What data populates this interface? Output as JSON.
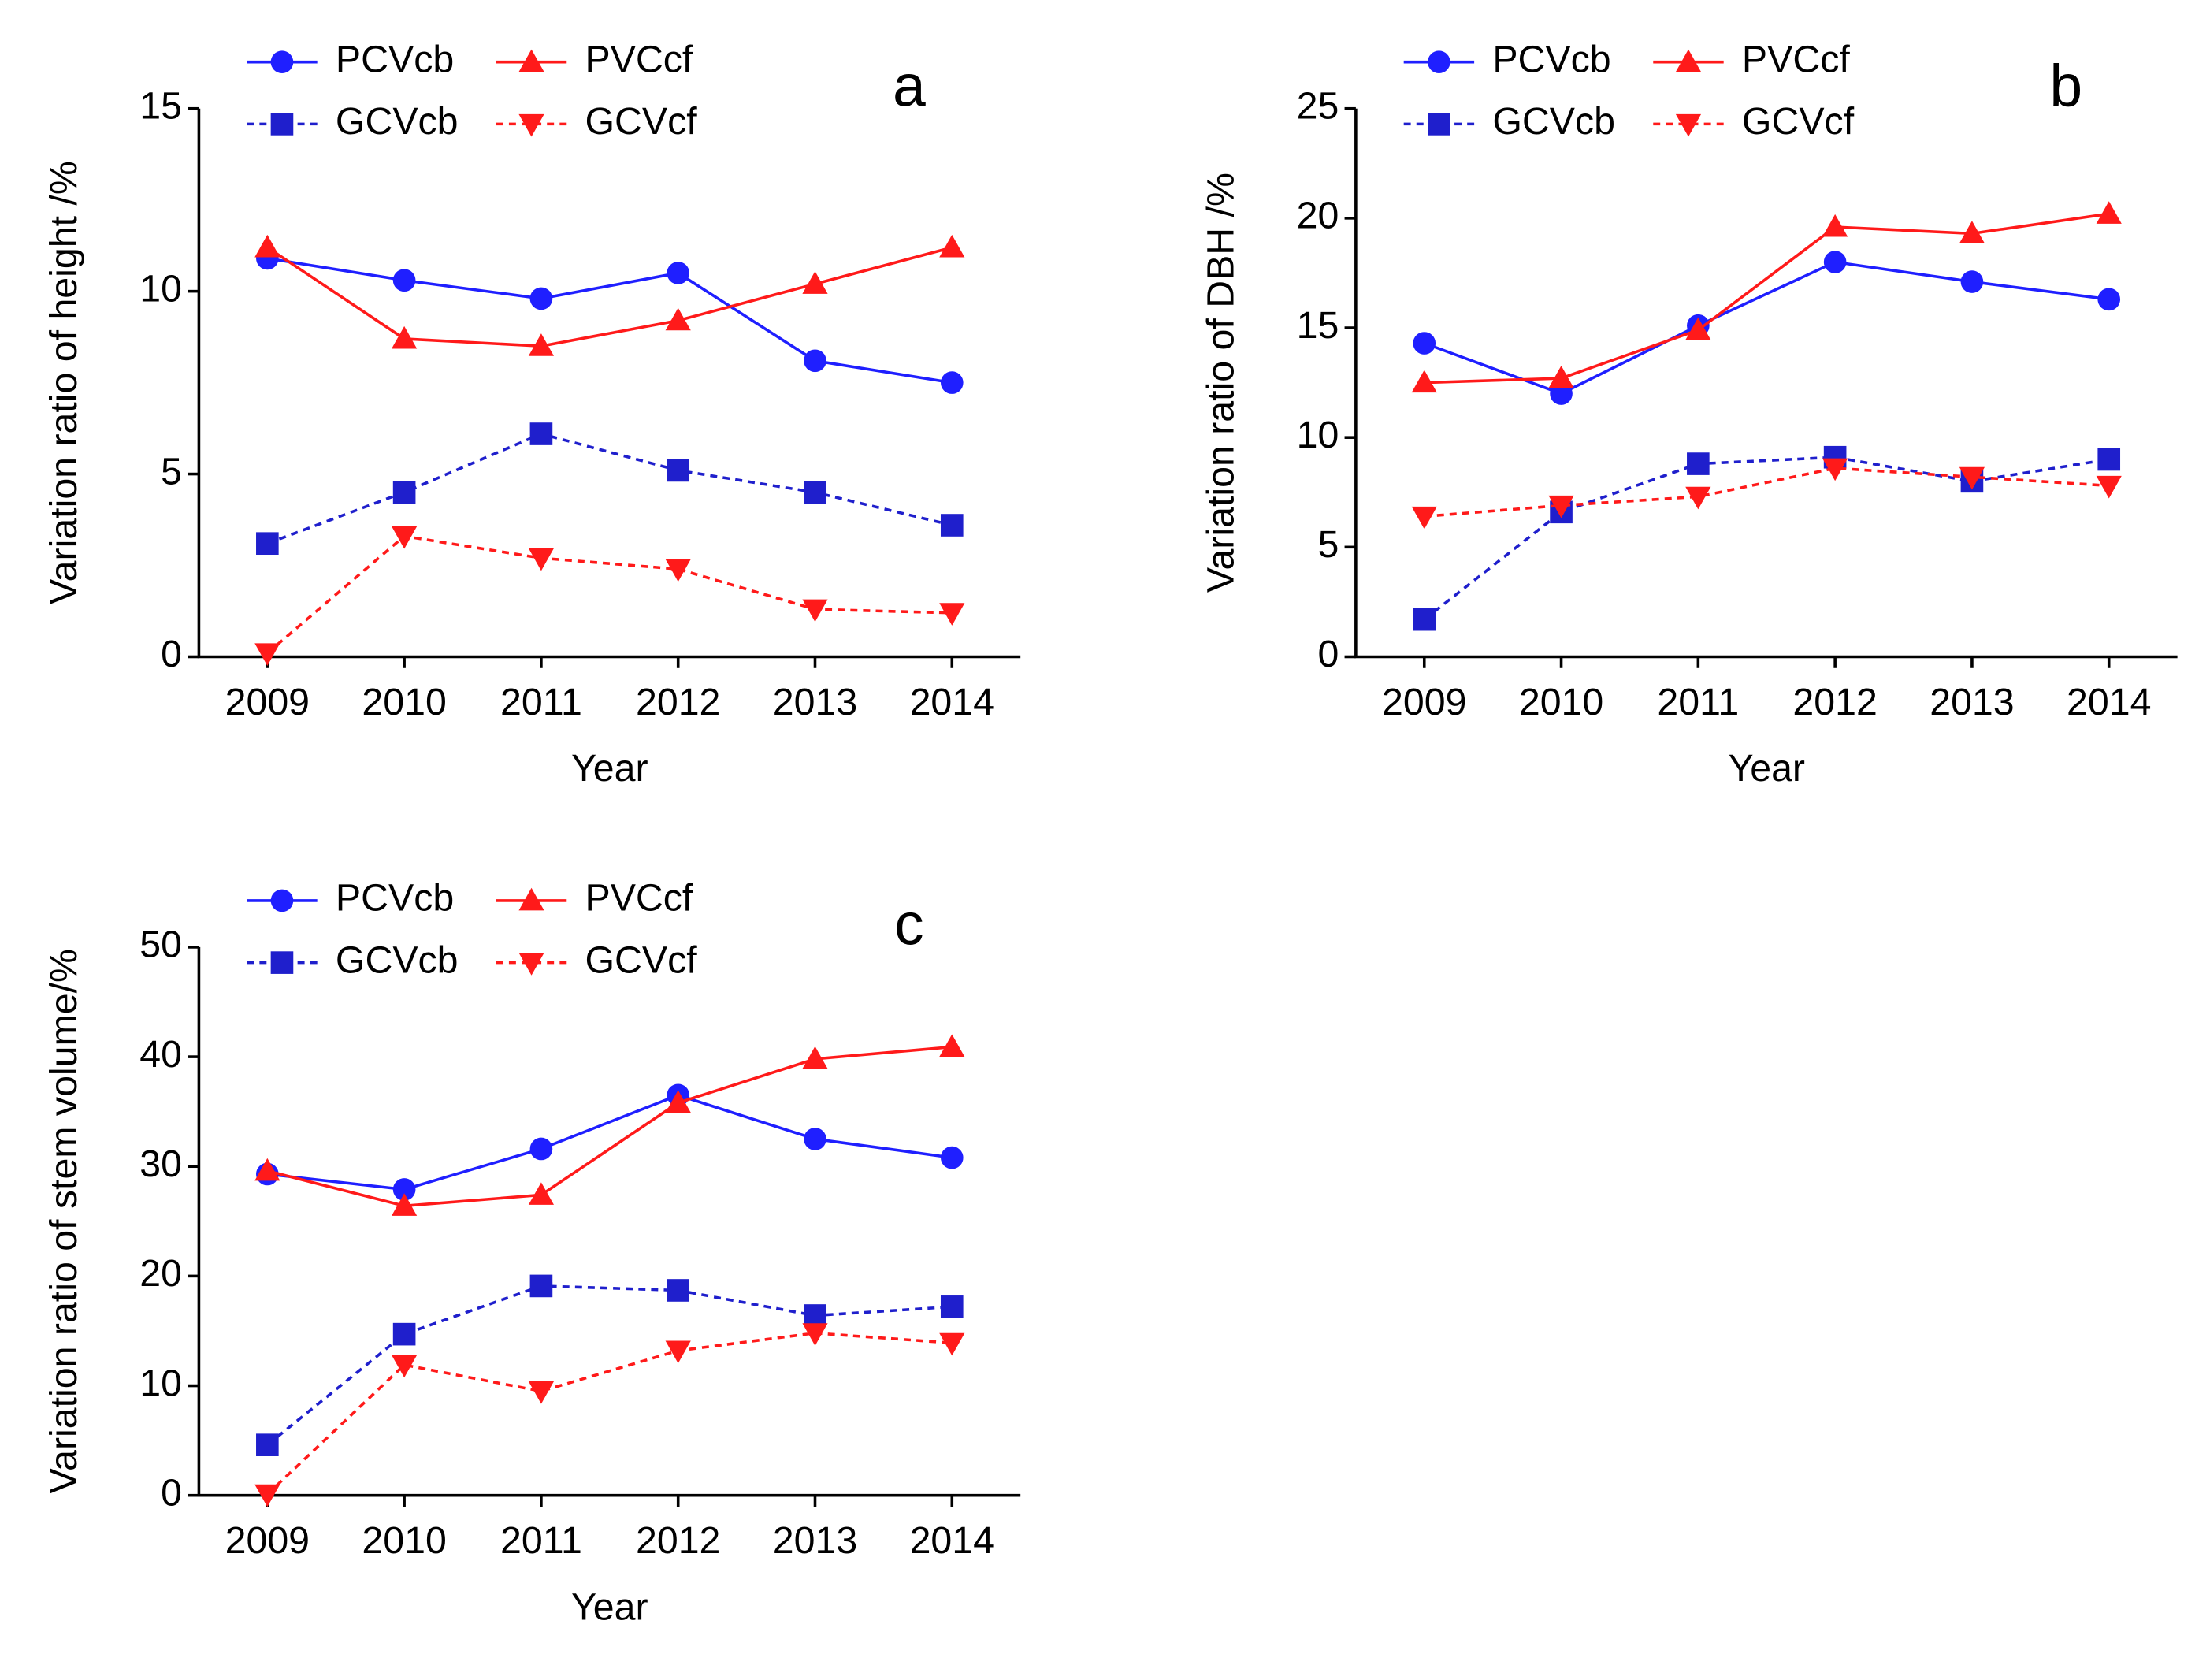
{
  "chart_data": [
    {
      "type": "line",
      "panel_label": "a",
      "y_label": "Variation ratio of height /%",
      "x_label": "Year",
      "categories": [
        "2009",
        "2010",
        "2011",
        "2012",
        "2013",
        "2014"
      ],
      "ylim": [
        0,
        15
      ],
      "yticks": [
        0,
        5,
        10,
        15
      ],
      "series": [
        {
          "name": "PCVcb",
          "color": "#1f1fff",
          "linestyle": "solid",
          "marker": "circle",
          "values": [
            10.9,
            10.3,
            9.8,
            10.5,
            8.1,
            7.5
          ]
        },
        {
          "name": "PVCcf",
          "color": "#ff1a1a",
          "linestyle": "solid",
          "marker": "triangle-up",
          "values": [
            11.2,
            8.7,
            8.5,
            9.2,
            10.2,
            11.2
          ]
        },
        {
          "name": "GCVcb",
          "color": "#1f1fcc",
          "linestyle": "dashed",
          "marker": "square",
          "values": [
            3.1,
            4.5,
            6.1,
            5.1,
            4.5,
            3.6
          ]
        },
        {
          "name": "GCVcf",
          "color": "#ff1a1a",
          "linestyle": "dashed",
          "marker": "triangle-down",
          "values": [
            0.1,
            3.3,
            2.7,
            2.4,
            1.3,
            1.2
          ]
        }
      ]
    },
    {
      "type": "line",
      "panel_label": "b",
      "y_label": "Variation ratio of DBH /%",
      "x_label": "Year",
      "categories": [
        "2009",
        "2010",
        "2011",
        "2012",
        "2013",
        "2014"
      ],
      "ylim": [
        0,
        25
      ],
      "yticks": [
        0,
        5,
        10,
        15,
        20,
        25
      ],
      "series": [
        {
          "name": "PCVcb",
          "color": "#1f1fff",
          "linestyle": "solid",
          "marker": "circle",
          "values": [
            14.3,
            12.0,
            15.1,
            18.0,
            17.1,
            16.3
          ]
        },
        {
          "name": "PVCcf",
          "color": "#ff1a1a",
          "linestyle": "solid",
          "marker": "triangle-up",
          "values": [
            12.5,
            12.7,
            14.9,
            19.6,
            19.3,
            20.2
          ]
        },
        {
          "name": "GCVcb",
          "color": "#1f1fcc",
          "linestyle": "dashed",
          "marker": "square",
          "values": [
            1.7,
            6.6,
            8.8,
            9.1,
            8.0,
            9.0
          ]
        },
        {
          "name": "GCVcf",
          "color": "#ff1a1a",
          "linestyle": "dashed",
          "marker": "triangle-down",
          "values": [
            6.4,
            6.9,
            7.3,
            8.6,
            8.2,
            7.8
          ]
        }
      ]
    },
    {
      "type": "line",
      "panel_label": "c",
      "y_label": "Variation ratio of stem volume/%",
      "x_label": "Year",
      "categories": [
        "2009",
        "2010",
        "2011",
        "2012",
        "2013",
        "2014"
      ],
      "ylim": [
        0,
        50
      ],
      "yticks": [
        0,
        10,
        20,
        30,
        40,
        50
      ],
      "series": [
        {
          "name": "PCVcb",
          "color": "#1f1fff",
          "linestyle": "solid",
          "marker": "circle",
          "values": [
            29.3,
            27.9,
            31.6,
            36.5,
            32.5,
            30.8
          ]
        },
        {
          "name": "PVCcf",
          "color": "#ff1a1a",
          "linestyle": "solid",
          "marker": "triangle-up",
          "values": [
            29.6,
            26.4,
            27.4,
            35.8,
            39.8,
            40.9
          ]
        },
        {
          "name": "GCVcb",
          "color": "#1f1fcc",
          "linestyle": "dashed",
          "marker": "square",
          "values": [
            4.6,
            14.7,
            19.1,
            18.7,
            16.4,
            17.2
          ]
        },
        {
          "name": "GCVcf",
          "color": "#ff1a1a",
          "linestyle": "dashed",
          "marker": "triangle-down",
          "values": [
            0.1,
            11.9,
            9.5,
            13.2,
            14.8,
            13.9
          ]
        }
      ]
    }
  ]
}
